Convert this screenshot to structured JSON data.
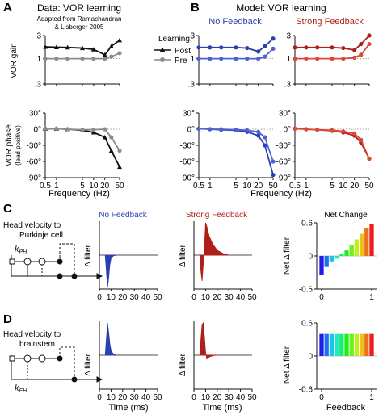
{
  "colors": {
    "black": "#111111",
    "gray": "#8c8c8c",
    "blue": "#2a3fb0",
    "blue_light": "#4f63d0",
    "red": "#b01e18",
    "red_light": "#d84a3a",
    "post": "#111111",
    "pre": "#8c8c8c"
  },
  "panels": {
    "A": {
      "letter": "A",
      "title": "Data: VOR learning",
      "subtitle_line1": "Adapted from Ramachandran",
      "subtitle_line2": "& Lisberger 2005",
      "legend_title": "Learning:",
      "legend_post": "Post",
      "legend_pre": "Pre",
      "gain_ylabel": "VOR gain",
      "phase_ylabel": "VOR phase",
      "phase_ylabel2": "(lead positive)",
      "xlabel": "Frequency (Hz)"
    },
    "B": {
      "letter": "B",
      "title": "Model: VOR learning",
      "sub_nofb": "No Feedback",
      "sub_strongfb": "Strong Feedback",
      "xlabel": "Frequency (Hz)"
    },
    "C": {
      "letter": "C",
      "title_line1": "Head velocity to",
      "title_line2": "Purkinje cell",
      "k_label": "k",
      "k_sub": "PH",
      "col_nofb": "No Feedback",
      "col_strongfb": "Strong Feedback",
      "col_net": "Net Change",
      "delta_filter": "Δ filter",
      "net_delta_filter": "Net Δ filter"
    },
    "D": {
      "letter": "D",
      "title_line1": "Head velocity to",
      "title_line2": "brainstem",
      "k_label": "k",
      "k_sub": "EH",
      "delta_filter": "Δ filter",
      "net_delta_filter": "Net Δ filter",
      "time_xlabel": "Time (ms)",
      "feedback_xlabel": "Feedback"
    }
  },
  "ticks": {
    "gain_y": [
      "3",
      "1",
      ".3"
    ],
    "phase_y": [
      "30°",
      "0°",
      "-30°",
      "-60°",
      "-90°"
    ],
    "freq_x": [
      "0.5",
      "1",
      "5",
      "10",
      "20",
      "50"
    ],
    "freq_x_short": [
      "0.5",
      "1",
      "5",
      "10",
      "20",
      "50"
    ],
    "time_x": [
      "0",
      "10",
      "20",
      "30",
      "40",
      "50"
    ],
    "net_y": [
      "0.6",
      "0",
      "-0.6"
    ],
    "feedback_x": [
      "0",
      "1"
    ]
  },
  "chart_data": [
    {
      "type": "line",
      "panel": "A-gain",
      "title": "Data: VOR learning",
      "ylabel": "VOR gain",
      "xlabel": "Frequency (Hz)",
      "x_scale": "log",
      "y_scale": "log",
      "x": [
        0.5,
        1,
        2,
        5,
        10,
        20,
        30,
        50
      ],
      "series": [
        {
          "name": "Post",
          "values": [
            1.75,
            1.72,
            1.7,
            1.65,
            1.55,
            1.2,
            1.8,
            2.4
          ]
        },
        {
          "name": "Pre",
          "values": [
            1.0,
            1.0,
            1.0,
            1.0,
            1.0,
            1.0,
            1.1,
            1.3
          ]
        }
      ]
    },
    {
      "type": "line",
      "panel": "A-phase",
      "ylabel": "VOR phase (lead positive)",
      "xlabel": "Frequency (Hz)",
      "x_scale": "log",
      "x": [
        0.5,
        1,
        2,
        5,
        10,
        20,
        30,
        50
      ],
      "series": [
        {
          "name": "Post",
          "values": [
            1,
            1,
            0,
            -2,
            -6,
            -15,
            -40,
            -70
          ]
        },
        {
          "name": "Pre",
          "values": [
            1,
            1,
            0,
            -1,
            -1,
            0,
            -15,
            -40
          ]
        }
      ]
    },
    {
      "type": "line",
      "panel": "B-nofb-gain",
      "title": "No Feedback",
      "x_scale": "log",
      "y_scale": "log",
      "x": [
        0.5,
        1,
        2,
        5,
        10,
        20,
        30,
        50
      ],
      "series": [
        {
          "name": "Post",
          "values": [
            1.7,
            1.7,
            1.7,
            1.7,
            1.65,
            1.4,
            1.8,
            2.6
          ]
        },
        {
          "name": "Pre",
          "values": [
            1.0,
            1.0,
            1.0,
            1.0,
            1.0,
            1.0,
            1.1,
            1.6
          ]
        }
      ]
    },
    {
      "type": "line",
      "panel": "B-nofb-phase",
      "x_scale": "log",
      "x": [
        0.5,
        1,
        2,
        5,
        10,
        20,
        30,
        50
      ],
      "series": [
        {
          "name": "Post",
          "values": [
            1,
            0,
            -1,
            -2,
            -5,
            -12,
            -30,
            -85
          ]
        },
        {
          "name": "Pre",
          "values": [
            1,
            0,
            0,
            -1,
            -2,
            -5,
            -15,
            -60
          ]
        }
      ]
    },
    {
      "type": "line",
      "panel": "B-strongfb-gain",
      "title": "Strong Feedback",
      "x_scale": "log",
      "y_scale": "log",
      "x": [
        0.5,
        1,
        2,
        5,
        10,
        20,
        30,
        50
      ],
      "series": [
        {
          "name": "Post",
          "values": [
            1.7,
            1.7,
            1.7,
            1.7,
            1.65,
            1.5,
            2.0,
            3.0
          ]
        },
        {
          "name": "Pre",
          "values": [
            1.0,
            1.0,
            1.0,
            1.0,
            1.0,
            1.05,
            1.2,
            2.0
          ]
        }
      ]
    },
    {
      "type": "line",
      "panel": "B-strongfb-phase",
      "x_scale": "log",
      "x": [
        0.5,
        1,
        2,
        5,
        10,
        20,
        30,
        50
      ],
      "series": [
        {
          "name": "Post",
          "values": [
            1,
            0,
            -1,
            -3,
            -6,
            -12,
            -25,
            -55
          ]
        },
        {
          "name": "Pre",
          "values": [
            1,
            0,
            -1,
            -2,
            -4,
            -8,
            -20,
            -55
          ]
        }
      ]
    },
    {
      "type": "area",
      "panel": "C-nofb",
      "title": "No Feedback",
      "ylabel": "Δ filter",
      "xlim": [
        0,
        50
      ],
      "x": [
        5,
        6,
        7,
        8,
        9,
        10,
        12,
        15
      ],
      "values": [
        0,
        -0.5,
        -1,
        -0.7,
        -0.3,
        -0.1,
        -0.02,
        0
      ]
    },
    {
      "type": "area",
      "panel": "C-strongfb",
      "title": "Strong Feedback",
      "ylabel": "Δ filter",
      "xlim": [
        0,
        50
      ],
      "x": [
        5,
        6,
        7,
        8,
        9,
        10,
        11,
        13,
        16,
        20,
        25,
        30
      ],
      "values": [
        0,
        -0.5,
        -0.8,
        -0.3,
        0.2,
        1.0,
        0.9,
        0.6,
        0.35,
        0.15,
        0.05,
        0
      ]
    },
    {
      "type": "bar",
      "panel": "C-net",
      "title": "Net Change",
      "ylabel": "Net Δ filter",
      "xlabel": "Feedback",
      "ylim": [
        -0.6,
        0.6
      ],
      "x": [
        0,
        0.1,
        0.2,
        0.3,
        0.4,
        0.5,
        0.6,
        0.7,
        0.8,
        0.9,
        1.0
      ],
      "values": [
        -0.35,
        -0.2,
        -0.1,
        -0.05,
        0.04,
        0.1,
        0.2,
        0.3,
        0.4,
        0.5,
        0.58
      ]
    },
    {
      "type": "area",
      "panel": "D-nofb",
      "ylabel": "Δ filter",
      "xlabel": "Time (ms)",
      "xlim": [
        0,
        50
      ],
      "x": [
        5,
        6,
        7,
        8,
        9,
        10,
        12,
        15
      ],
      "values": [
        0,
        0.5,
        1,
        0.7,
        0.35,
        0.15,
        0.03,
        0
      ]
    },
    {
      "type": "area",
      "panel": "D-strongfb",
      "ylabel": "Δ filter",
      "xlabel": "Time (ms)",
      "xlim": [
        0,
        50
      ],
      "x": [
        5,
        6,
        7,
        8,
        9,
        10,
        11,
        12,
        14,
        17,
        22
      ],
      "values": [
        0,
        0.5,
        0.95,
        1.0,
        0.6,
        0.1,
        -0.12,
        -0.08,
        -0.04,
        -0.01,
        0
      ]
    },
    {
      "type": "bar",
      "panel": "D-net",
      "ylabel": "Net Δ filter",
      "xlabel": "Feedback",
      "ylim": [
        -0.6,
        0.6
      ],
      "x": [
        0,
        0.1,
        0.2,
        0.3,
        0.4,
        0.5,
        0.6,
        0.7,
        0.8,
        0.9,
        1.0
      ],
      "values": [
        0.4,
        0.4,
        0.4,
        0.4,
        0.4,
        0.4,
        0.4,
        0.4,
        0.4,
        0.4,
        0.4
      ]
    }
  ]
}
